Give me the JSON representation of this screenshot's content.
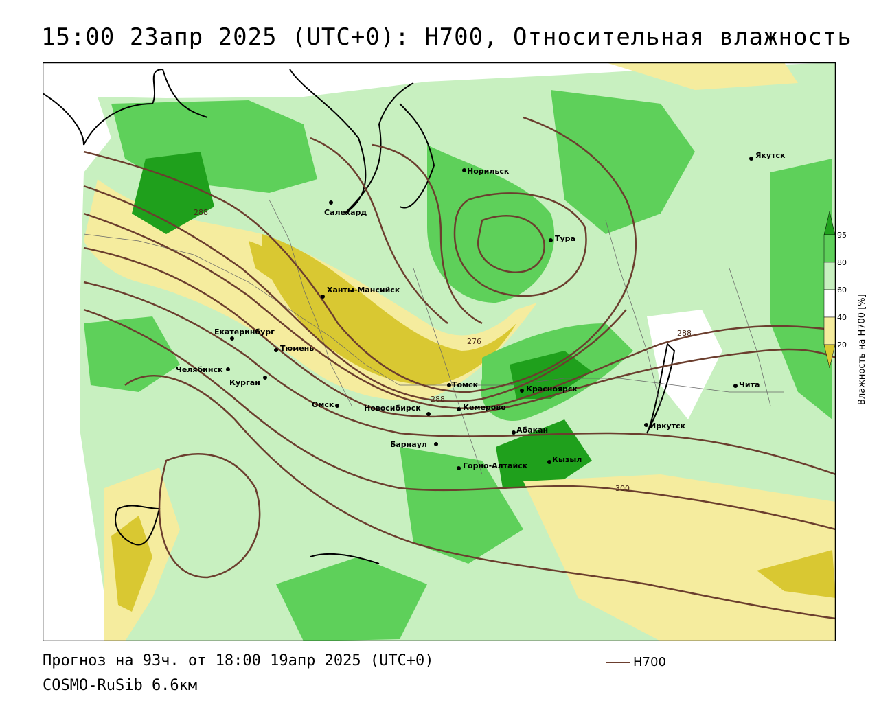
{
  "title": "15:00 23апр 2025 (UTC+0): H700, Относительная влажность",
  "footer": {
    "forecast": "Прогноз на 93ч. от 18:00 19апр 2025 (UTC+0)",
    "model": "COSMO-RuSib 6.6км",
    "line_key": "H700"
  },
  "legend": {
    "title": "Влажность на H700 [%]",
    "ticks": [
      "95",
      "80",
      "60",
      "40",
      "20"
    ],
    "colors": {
      "very_dry": "#d9c832",
      "dry": "#f5ec9e",
      "mid": "#ffffff",
      "moist": "#c8f0c0",
      "wet": "#5ed05a",
      "very_wet": "#1fa01c"
    }
  },
  "contours": {
    "color": "#6b3e2e",
    "labels": [
      "288",
      "276",
      "288",
      "288",
      "300"
    ]
  },
  "cities": [
    {
      "name": "Норильск"
    },
    {
      "name": "Салехард"
    },
    {
      "name": "Тура"
    },
    {
      "name": "Якутск"
    },
    {
      "name": "Ханты-Мансийск"
    },
    {
      "name": "Екатеринбург"
    },
    {
      "name": "Тюмень"
    },
    {
      "name": "Челябинск"
    },
    {
      "name": "Курган"
    },
    {
      "name": "Омск"
    },
    {
      "name": "Томск"
    },
    {
      "name": "Новосибирск"
    },
    {
      "name": "Кемерово"
    },
    {
      "name": "Красноярск"
    },
    {
      "name": "Абакан"
    },
    {
      "name": "Барнаул"
    },
    {
      "name": "Горно-Алтайск"
    },
    {
      "name": "Кызыл"
    },
    {
      "name": "Иркутск"
    },
    {
      "name": "Чита"
    }
  ]
}
